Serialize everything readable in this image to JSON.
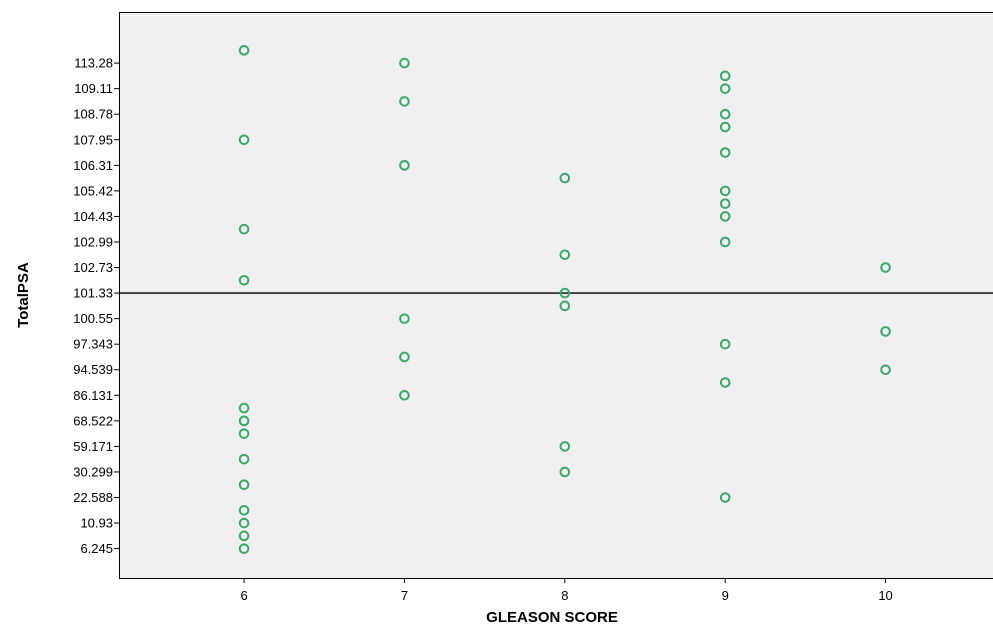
{
  "chart_data": {
    "type": "scatter",
    "title": "",
    "xlabel": "GLEASON SCORE",
    "ylabel": "TotalPSA",
    "x_ticks": [
      "6",
      "7",
      "8",
      "9",
      "10"
    ],
    "x_range": [
      5.22,
      10.67
    ],
    "y_ticks": [
      "113.28",
      "109.11",
      "108.78",
      "107.95",
      "106.31",
      "105.42",
      "104.43",
      "102.99",
      "102.73",
      "101.33",
      "100.55",
      "97.343",
      "94.539",
      "86.131",
      "68.522",
      "59.171",
      "30.299",
      "22.588",
      "10.93",
      "6.245"
    ],
    "y_axis_note": "categorical ordinal axis; tick labels listed top to bottom, spaced one row apart; point y values given as row positions (0 = 6.245 ... 19 = 113.28; x.5 = between ticks)",
    "y_row_range": [
      -1.15,
      21.0
    ],
    "reference_line": {
      "axis": "y",
      "label": "101.33"
    },
    "grid": false,
    "legend": "none",
    "marker": "open-circle",
    "colors": {
      "marker": "#3aa86b",
      "plot_bg": "#f0f0f0",
      "frame": "#000000",
      "reference_line": "#000000"
    },
    "points": [
      {
        "x": 6,
        "y": 19.5
      },
      {
        "x": 6,
        "y": 16.0
      },
      {
        "x": 6,
        "y": 12.5
      },
      {
        "x": 6,
        "y": 10.5
      },
      {
        "x": 6,
        "y": 5.5
      },
      {
        "x": 6,
        "y": 5.0
      },
      {
        "x": 6,
        "y": 4.5
      },
      {
        "x": 6,
        "y": 3.5
      },
      {
        "x": 6,
        "y": 2.5
      },
      {
        "x": 6,
        "y": 1.5
      },
      {
        "x": 6,
        "y": 1.0
      },
      {
        "x": 6,
        "y": 0.5
      },
      {
        "x": 6,
        "y": 0.0
      },
      {
        "x": 7,
        "y": 19.0
      },
      {
        "x": 7,
        "y": 17.5
      },
      {
        "x": 7,
        "y": 15.0
      },
      {
        "x": 7,
        "y": 9.0
      },
      {
        "x": 7,
        "y": 7.5
      },
      {
        "x": 7,
        "y": 6.0
      },
      {
        "x": 8,
        "y": 14.5
      },
      {
        "x": 8,
        "y": 11.5
      },
      {
        "x": 8,
        "y": 10.0
      },
      {
        "x": 8,
        "y": 9.5
      },
      {
        "x": 8,
        "y": 4.0
      },
      {
        "x": 8,
        "y": 3.0
      },
      {
        "x": 9,
        "y": 18.5
      },
      {
        "x": 9,
        "y": 18.0
      },
      {
        "x": 9,
        "y": 17.0
      },
      {
        "x": 9,
        "y": 16.5
      },
      {
        "x": 9,
        "y": 15.5
      },
      {
        "x": 9,
        "y": 14.0
      },
      {
        "x": 9,
        "y": 13.5
      },
      {
        "x": 9,
        "y": 13.0
      },
      {
        "x": 9,
        "y": 12.0
      },
      {
        "x": 9,
        "y": 8.0
      },
      {
        "x": 9,
        "y": 6.5
      },
      {
        "x": 9,
        "y": 2.0
      },
      {
        "x": 10,
        "y": 11.0
      },
      {
        "x": 10,
        "y": 8.5
      },
      {
        "x": 10,
        "y": 7.0
      }
    ]
  }
}
